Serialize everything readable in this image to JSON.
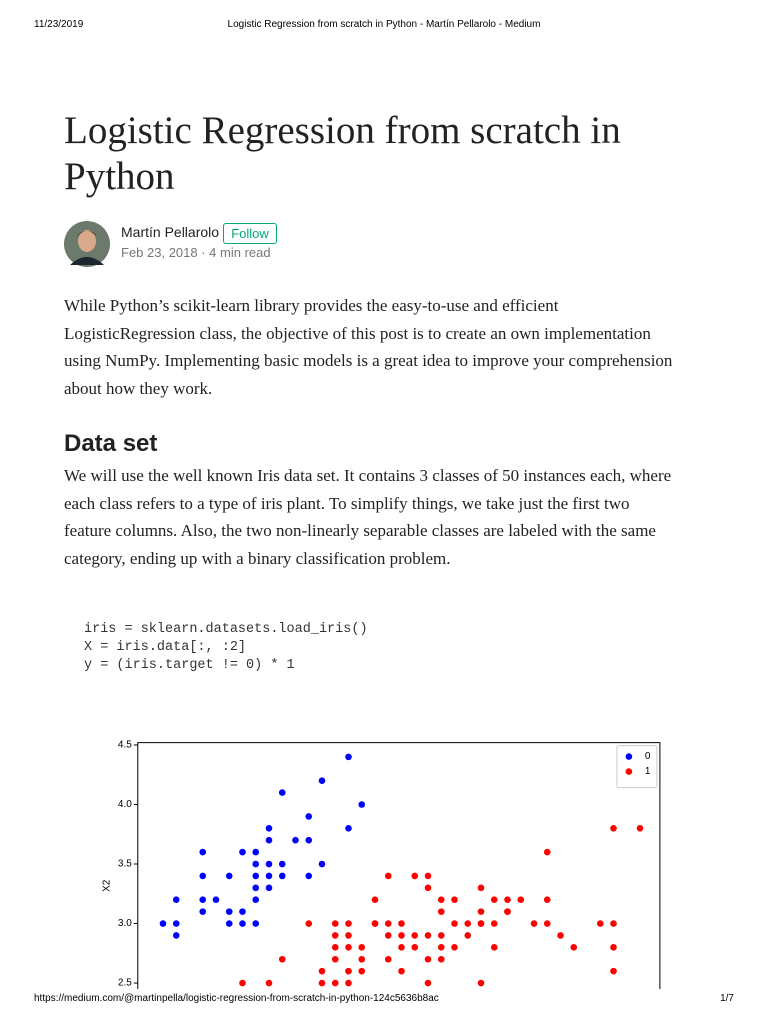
{
  "header": {
    "date": "11/23/2019",
    "title": "Logistic Regression from scratch in Python - Martín Pellarolo - Medium"
  },
  "article": {
    "title_lines": [
      "Logistic Regression from scratch in",
      "Python"
    ],
    "author": "Martín Pellarolo",
    "follow": "Follow",
    "meta": "Feb 23, 2018 · 4 min read",
    "intro_lines": [
      "While Python’s scikit-learn library provides the easy-to-use and efficient",
      "LogisticRegression class, the objective of this post is to create an own implementation",
      "using NumPy. Implementing basic models is a great idea to improve your comprehension",
      "about how they work."
    ],
    "heading": "Data set",
    "dataset_lines": [
      "We will use the well known Iris data set. It contains 3 classes of 50 instances each, where",
      "each class refers to a type of iris plant. To simplify things, we take just the first two",
      "feature columns. Also, the two non-linearly separable classes are labeled with the same",
      "category, ending up with a binary classification problem."
    ],
    "code_lines": [
      "iris = sklearn.datasets.load_iris()",
      "X = iris.data[:, :2]",
      "y = (iris.target != 0) * 1"
    ]
  },
  "chart_data": {
    "type": "scatter",
    "y_label": "X2",
    "xlim": [
      4.11,
      8.05
    ],
    "ylim": [
      2.45,
      4.52
    ],
    "yticks": [
      {
        "value": 2.5,
        "label": "2.5"
      },
      {
        "value": 3.0,
        "label": "3.0"
      },
      {
        "value": 3.5,
        "label": "3.5"
      },
      {
        "value": 4.0,
        "label": "4.0"
      },
      {
        "value": 4.5,
        "label": "4.5"
      }
    ],
    "legend": "top-right",
    "series": [
      {
        "name": "0",
        "color": "#0000ff",
        "x": [
          5.1,
          4.9,
          4.7,
          4.6,
          5.0,
          5.4,
          4.6,
          5.0,
          4.4,
          4.9,
          5.4,
          4.8,
          4.8,
          4.3,
          5.8,
          5.7,
          5.7,
          5.1,
          5.1,
          4.6,
          5.1,
          5.0,
          5.2,
          5.2,
          4.8,
          5.2,
          5.5,
          5.0,
          5.5,
          4.9,
          4.4,
          5.1,
          5.0,
          4.4,
          4.6,
          5.3,
          5.0,
          5.4
        ],
        "values": [
          3.5,
          3.0,
          3.2,
          3.1,
          3.6,
          3.9,
          3.4,
          3.4,
          2.9,
          3.1,
          3.7,
          3.4,
          3.0,
          3.0,
          4.0,
          4.4,
          3.8,
          3.8,
          3.7,
          3.6,
          3.3,
          3.0,
          3.5,
          3.4,
          3.1,
          4.1,
          4.2,
          3.2,
          3.5,
          3.6,
          3.0,
          3.4,
          3.5,
          3.2,
          3.2,
          3.7,
          3.3,
          3.4
        ]
      },
      {
        "name": "1",
        "color": "#ff0000",
        "x": [
          7.0,
          6.4,
          6.9,
          6.5,
          5.7,
          6.3,
          6.6,
          5.2,
          5.9,
          6.1,
          5.6,
          6.7,
          5.6,
          5.8,
          5.6,
          5.9,
          6.1,
          6.3,
          6.4,
          6.6,
          6.8,
          6.7,
          6.0,
          5.7,
          6.0,
          5.4,
          6.0,
          5.5,
          5.5,
          6.1,
          5.8,
          5.6,
          5.7,
          5.7,
          6.2,
          5.1,
          7.1,
          6.3,
          7.6,
          4.9,
          7.3,
          6.7,
          7.2,
          6.5,
          6.4,
          6.8,
          5.7,
          5.8,
          7.7,
          7.7,
          6.9,
          5.6,
          7.7,
          6.3,
          6.7,
          7.2,
          6.2,
          6.4,
          7.2,
          7.4,
          7.9,
          6.1,
          7.7,
          6.3,
          6.4,
          6.0,
          6.9,
          6.8,
          6.7,
          6.5,
          6.2,
          5.9
        ],
        "values": [
          3.2,
          3.2,
          3.1,
          2.8,
          2.8,
          3.3,
          2.9,
          2.7,
          3.0,
          2.9,
          2.9,
          3.1,
          3.0,
          2.7,
          2.5,
          3.2,
          2.8,
          2.5,
          2.9,
          3.0,
          2.8,
          3.0,
          2.9,
          2.6,
          2.7,
          3.0,
          3.4,
          2.5,
          2.6,
          3.0,
          2.6,
          2.7,
          3.0,
          2.9,
          2.9,
          2.5,
          3.0,
          2.9,
          3.0,
          2.5,
          2.9,
          2.5,
          3.6,
          3.2,
          2.7,
          3.0,
          2.5,
          2.8,
          3.8,
          2.6,
          3.2,
          2.8,
          2.8,
          2.7,
          3.3,
          3.2,
          2.8,
          2.8,
          3.0,
          2.8,
          3.8,
          2.6,
          3.0,
          3.4,
          3.1,
          3.0,
          3.1,
          3.2,
          3.0,
          3.0,
          3.4,
          3.0
        ]
      }
    ]
  },
  "footer": {
    "url": "https://medium.com/@martinpella/logistic-regression-from-scratch-in-python-124c5636b8ac",
    "page": "1/7"
  }
}
